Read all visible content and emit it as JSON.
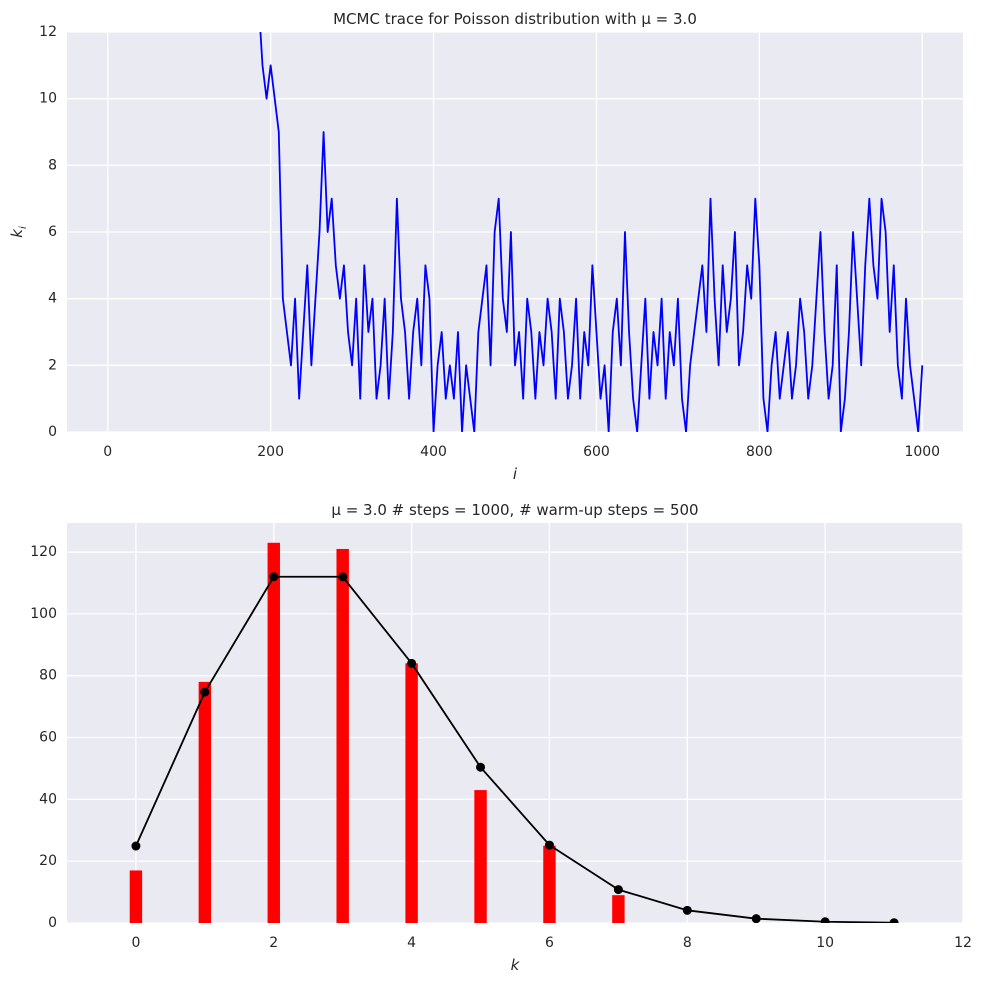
{
  "chart_data": [
    {
      "type": "line",
      "title": "MCMC trace for Poisson distribution with μ = 3.0",
      "xlabel": "i",
      "ylabel": "k",
      "ylabel_subscript": "i",
      "x": [
        185,
        190,
        195,
        200,
        205,
        210,
        215,
        220,
        225,
        230,
        235,
        240,
        245,
        250,
        255,
        260,
        265,
        270,
        275,
        280,
        285,
        290,
        295,
        300,
        305,
        310,
        315,
        320,
        325,
        330,
        335,
        340,
        345,
        350,
        355,
        360,
        365,
        370,
        375,
        380,
        385,
        390,
        395,
        400,
        405,
        410,
        415,
        420,
        425,
        430,
        435,
        440,
        445,
        450,
        455,
        460,
        465,
        470,
        475,
        480,
        485,
        490,
        495,
        500,
        505,
        510,
        515,
        520,
        525,
        530,
        535,
        540,
        545,
        550,
        555,
        560,
        565,
        570,
        575,
        580,
        585,
        590,
        595,
        600,
        605,
        610,
        615,
        620,
        625,
        630,
        635,
        640,
        645,
        650,
        655,
        660,
        665,
        670,
        675,
        680,
        685,
        690,
        695,
        700,
        705,
        710,
        715,
        720,
        725,
        730,
        735,
        740,
        745,
        750,
        755,
        760,
        765,
        770,
        775,
        780,
        785,
        790,
        795,
        800,
        805,
        810,
        815,
        820,
        825,
        830,
        835,
        840,
        845,
        850,
        855,
        860,
        865,
        870,
        875,
        880,
        885,
        890,
        895,
        900,
        905,
        910,
        915,
        920,
        925,
        930,
        935,
        940,
        945,
        950,
        955,
        960,
        965,
        970,
        975,
        980,
        985,
        990,
        995,
        1000
      ],
      "values": [
        13,
        11,
        10,
        11,
        10,
        9,
        4,
        3,
        2,
        4,
        1,
        3,
        5,
        2,
        4,
        6,
        9,
        6,
        7,
        5,
        4,
        5,
        3,
        2,
        4,
        1,
        5,
        3,
        4,
        1,
        2,
        4,
        1,
        3,
        7,
        4,
        3,
        1,
        3,
        4,
        2,
        5,
        4,
        0,
        2,
        3,
        1,
        2,
        1,
        3,
        0,
        2,
        1,
        0,
        3,
        4,
        5,
        2,
        6,
        7,
        4,
        3,
        6,
        2,
        3,
        1,
        4,
        3,
        1,
        3,
        2,
        4,
        3,
        1,
        4,
        3,
        1,
        2,
        4,
        1,
        3,
        2,
        5,
        3,
        1,
        2,
        0,
        3,
        4,
        2,
        6,
        3,
        1,
        0,
        2,
        4,
        1,
        3,
        2,
        4,
        1,
        3,
        2,
        4,
        1,
        0,
        2,
        3,
        4,
        5,
        3,
        7,
        4,
        2,
        5,
        3,
        4,
        6,
        2,
        3,
        5,
        4,
        7,
        5,
        1,
        0,
        2,
        3,
        1,
        2,
        3,
        1,
        2,
        4,
        3,
        1,
        2,
        4,
        6,
        3,
        1,
        2,
        5,
        0,
        1,
        3,
        6,
        4,
        2,
        5,
        7,
        5,
        4,
        7,
        6,
        3,
        5,
        2,
        1,
        4,
        2,
        1,
        0,
        2
      ],
      "color": "#0000ff",
      "xlim": [
        -50,
        1050
      ],
      "ylim": [
        0,
        12
      ],
      "xticks": [
        0,
        200,
        400,
        600,
        800,
        1000
      ],
      "yticks": [
        0,
        2,
        4,
        6,
        8,
        10,
        12
      ],
      "grid": true
    },
    {
      "type": "bar",
      "title": "μ = 3.0  # steps = 1000, # warm-up steps = 500",
      "xlabel": "k",
      "x": [
        0,
        1,
        2,
        3,
        4,
        5,
        6,
        7
      ],
      "values": [
        17,
        78,
        123,
        121,
        84,
        43,
        25,
        9
      ],
      "color": "#ff0000",
      "line": {
        "x": [
          0,
          1,
          2,
          3,
          4,
          5,
          6,
          7,
          8,
          9,
          10,
          11
        ],
        "values": [
          24.9,
          74.7,
          112,
          112,
          84,
          50.4,
          25.2,
          10.8,
          4.1,
          1.4,
          0.4,
          0.1
        ],
        "color": "#000000"
      },
      "xlim": [
        -1,
        12
      ],
      "ylim": [
        0,
        129.4
      ],
      "xticks": [
        0,
        2,
        4,
        6,
        8,
        10,
        12
      ],
      "yticks": [
        0,
        20,
        40,
        60,
        80,
        100,
        120
      ],
      "grid": true
    }
  ]
}
